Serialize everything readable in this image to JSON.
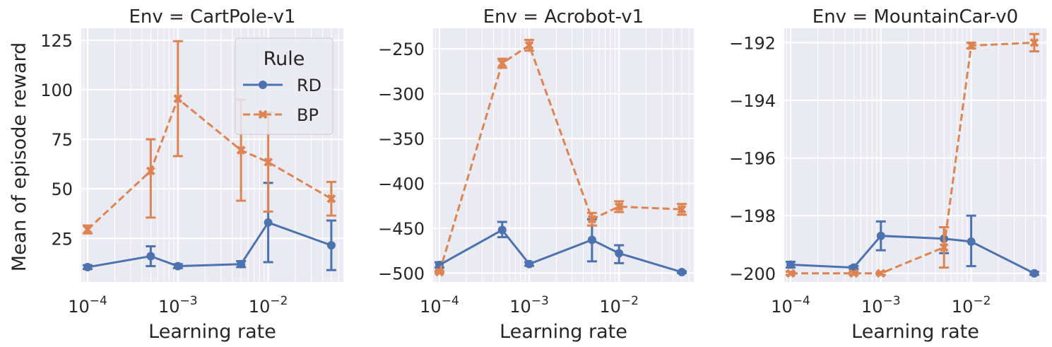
{
  "figure": {
    "ylabel": "Mean of episode reward",
    "xlabel": "Learning rate"
  },
  "legend": {
    "title": "Rule",
    "entries": [
      {
        "name": "RD",
        "color": "#4c72b0"
      },
      {
        "name": "BP",
        "color": "#dd8452"
      }
    ]
  },
  "colors": {
    "background": "#eaeaf2",
    "grid": "#ffffff",
    "rd": "#4c72b0",
    "bp": "#dd8452",
    "text": "#262626"
  },
  "chart_data": [
    {
      "type": "line",
      "title": "Env = CartPole-v1",
      "xlabel": "Learning rate",
      "ylabel": "Mean of episode reward",
      "xscale": "log",
      "xlim": [
        8.5e-05,
        0.068
      ],
      "ylim": [
        3,
        131
      ],
      "yticks": [
        25,
        50,
        75,
        100,
        125
      ],
      "ytick_labels": [
        "25",
        "50",
        "75",
        "100",
        "125"
      ],
      "xtick_labels": [
        "10^-4",
        "10^-3",
        "10^-2"
      ],
      "series": [
        {
          "name": "RD",
          "x": [
            0.0001,
            0.0005,
            0.001,
            0.005,
            0.01,
            0.05
          ],
          "y": [
            10.5,
            16,
            11,
            12,
            33,
            21.5
          ],
          "lo": [
            9.5,
            11,
            10,
            10.5,
            13,
            9
          ],
          "hi": [
            11.5,
            21,
            12,
            13.5,
            53,
            34
          ]
        },
        {
          "name": "BP",
          "x": [
            0.0001,
            0.0005,
            0.001,
            0.005,
            0.01,
            0.05
          ],
          "y": [
            29.5,
            59,
            95.5,
            69.5,
            63.5,
            45
          ],
          "lo": [
            27.5,
            35.5,
            66.5,
            44,
            38.5,
            36.5
          ],
          "hi": [
            31.5,
            75,
            124.5,
            95,
            88.5,
            53.5
          ]
        }
      ]
    },
    {
      "type": "line",
      "title": "Env = Acrobot-v1",
      "xlabel": "Learning rate",
      "ylabel": "",
      "xscale": "log",
      "xlim": [
        8.5e-05,
        0.068
      ],
      "ylim": [
        -510,
        -227
      ],
      "yticks": [
        -500,
        -450,
        -400,
        -350,
        -300,
        -250
      ],
      "ytick_labels": [
        "−500",
        "−450",
        "−400",
        "−350",
        "−300",
        "−250"
      ],
      "xtick_labels": [
        "10^-4",
        "10^-3",
        "10^-2"
      ],
      "series": [
        {
          "name": "RD",
          "x": [
            0.0001,
            0.0005,
            0.001,
            0.005,
            0.01,
            0.05
          ],
          "y": [
            -491,
            -452,
            -490,
            -463,
            -478,
            -499
          ],
          "lo": [
            -494,
            -460,
            -492,
            -487,
            -489,
            -500
          ],
          "hi": [
            -488,
            -443,
            -488,
            -440,
            -469,
            -498
          ]
        },
        {
          "name": "BP",
          "x": [
            0.0001,
            0.0005,
            0.001,
            0.005,
            0.01,
            0.05
          ],
          "y": [
            -499,
            -266,
            -246,
            -440,
            -426,
            -429
          ],
          "lo": [
            -500,
            -271,
            -252,
            -447,
            -432,
            -435
          ],
          "hi": [
            -498,
            -261,
            -240,
            -433,
            -420,
            -423
          ]
        }
      ]
    },
    {
      "type": "line",
      "title": "Env = MountainCar-v0",
      "xlabel": "Learning rate",
      "ylabel": "",
      "xscale": "log",
      "xlim": [
        8.5e-05,
        0.068
      ],
      "ylim": [
        -200.3,
        -191.5
      ],
      "yticks": [
        -200,
        -198,
        -196,
        -194,
        -192
      ],
      "ytick_labels": [
        "−200",
        "−198",
        "−196",
        "−194",
        "−192"
      ],
      "xtick_labels": [
        "10^-4",
        "10^-3",
        "10^-2"
      ],
      "series": [
        {
          "name": "RD",
          "x": [
            0.0001,
            0.0005,
            0.001,
            0.005,
            0.01,
            0.05
          ],
          "y": [
            -199.7,
            -199.8,
            -198.7,
            -198.8,
            -198.9,
            -200
          ],
          "lo": [
            -199.8,
            -199.85,
            -199.2,
            -199.3,
            -199.75,
            -200.05
          ],
          "hi": [
            -199.6,
            -199.75,
            -198.2,
            -198.4,
            -198.0,
            -199.95
          ]
        },
        {
          "name": "BP",
          "x": [
            0.0001,
            0.0005,
            0.001,
            0.005,
            0.01,
            0.05
          ],
          "y": [
            -200,
            -200,
            -200,
            -199.1,
            -192.1,
            -192
          ],
          "lo": [
            -200.05,
            -200.05,
            -200.05,
            -199.8,
            -192.2,
            -192.3
          ],
          "hi": [
            -199.95,
            -199.95,
            -199.95,
            -198.4,
            -192.0,
            -191.7
          ]
        }
      ]
    }
  ]
}
